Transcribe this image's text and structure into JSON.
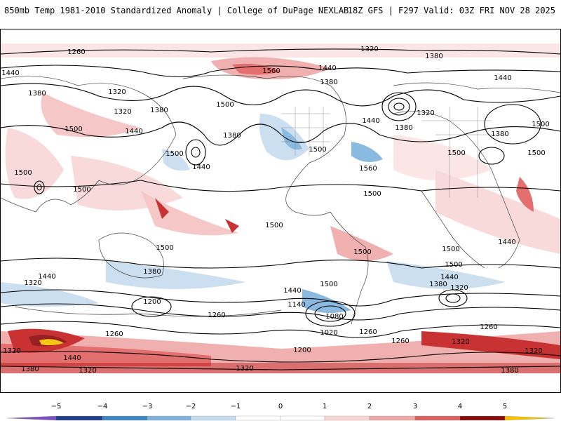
{
  "header": {
    "title_left": "850mb Temp 1981-2010 Standardized Anomaly | College of DuPage NEXLAB",
    "title_right": "18Z GFS | F297 Valid: 03Z FRI NOV 28 2025"
  },
  "contour_labels": [
    "1260",
    "1320",
    "1380",
    "1440",
    "1560",
    "1440",
    "1380",
    "1440",
    "1320",
    "1500",
    "1380",
    "1320",
    "1380",
    "1440",
    "1500",
    "1380",
    "1500",
    "1440",
    "1500",
    "1560",
    "1440",
    "1380",
    "1320",
    "1500",
    "1500",
    "1500",
    "1500",
    "1500",
    "1500",
    "1500",
    "1500",
    "1500",
    "1440",
    "1500",
    "1440",
    "1380",
    "1320",
    "1200",
    "1440",
    "1380",
    "1320",
    "1140",
    "1080",
    "1020",
    "1260",
    "1260",
    "1260",
    "1200",
    "1260",
    "1320",
    "1260",
    "1440",
    "1320",
    "1320",
    "1380",
    "1380",
    "1320",
    "1500",
    "1440",
    "1500",
    "1380",
    "1320"
  ],
  "colorbar": {
    "ticks": [
      "−5",
      "−4",
      "−3",
      "−2",
      "−1",
      "0",
      "1",
      "2",
      "3",
      "4",
      "5"
    ],
    "colors": {
      "neg5": "#7b4fbf",
      "neg4": "#1f3e8f",
      "neg3": "#3a86c8",
      "neg2": "#7fb3dd",
      "neg1": "#c6dcef",
      "zero": "#ffffff",
      "pos1": "#f8d6d6",
      "pos2": "#f0a8a8",
      "pos3": "#e06060",
      "pos4": "#c41c1c",
      "pos5": "#8a0a0a",
      "pos6": "#f5c000"
    }
  }
}
